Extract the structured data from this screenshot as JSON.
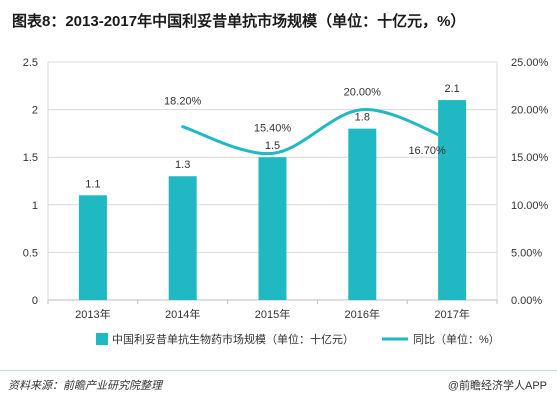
{
  "title": "图表8：2013-2017年中国利妥昔单抗市场规模（单位：十亿元，%）",
  "footer": {
    "source": "资料来源：前瞻产业研究院整理",
    "brand": "@前瞻经济学人APP"
  },
  "colors": {
    "bar": "#1fb8c3",
    "line": "#1fb8c3",
    "grid": "#d9d9d9",
    "text": "#333333"
  },
  "chart_data": {
    "type": "bar",
    "categories": [
      "2013年",
      "2014年",
      "2015年",
      "2016年",
      "2017年"
    ],
    "series": [
      {
        "name": "中国利妥昔单抗生物药市场规模（单位：十亿元）",
        "type": "bar",
        "axis": "left",
        "values": [
          1.1,
          1.3,
          1.5,
          1.8,
          2.1
        ],
        "labels": [
          "1.1",
          "1.3",
          "1.5",
          "1.8",
          "2.1"
        ]
      },
      {
        "name": "同比（单位：%）",
        "type": "line",
        "axis": "right",
        "values": [
          null,
          18.2,
          15.4,
          20.0,
          16.7
        ],
        "labels": [
          "",
          "18.20%",
          "15.40%",
          "20.00%",
          "16.70%"
        ]
      }
    ],
    "y_left": {
      "min": 0,
      "max": 2.5,
      "ticks": [
        "0",
        "0.5",
        "1",
        "1.5",
        "2",
        "2.5"
      ]
    },
    "y_right": {
      "min": 0,
      "max": 25,
      "ticks": [
        "0.00%",
        "5.00%",
        "10.00%",
        "15.00%",
        "20.00%",
        "25.00%"
      ]
    },
    "grid": true,
    "legend": "bottom"
  }
}
